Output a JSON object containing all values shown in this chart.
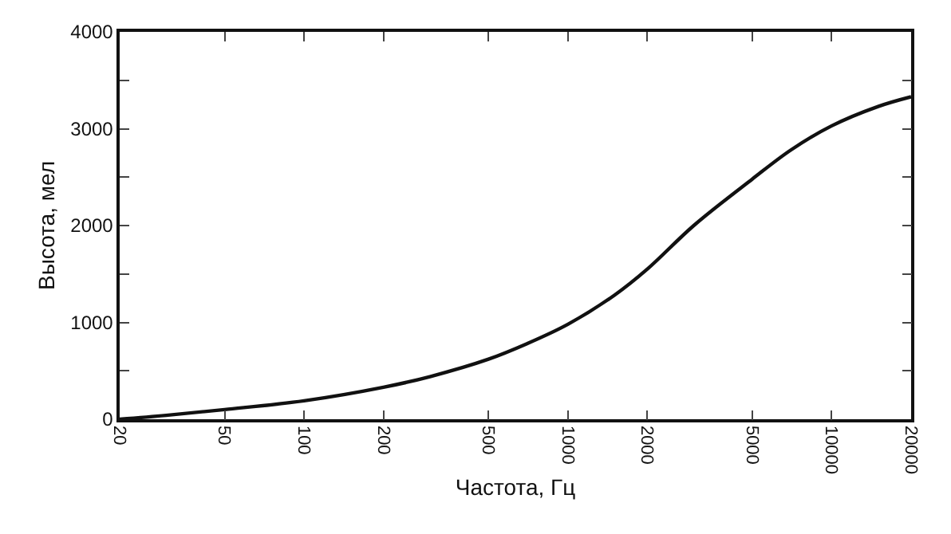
{
  "chart_data": {
    "type": "line",
    "xlabel": "Частота, Гц",
    "ylabel": "Высота, мел",
    "log": "x",
    "x": [
      20,
      30,
      50,
      100,
      200,
      300,
      500,
      700,
      1000,
      1500,
      2000,
      3000,
      5000,
      7000,
      10000,
      15000,
      20000
    ],
    "series": [
      {
        "color": "#111111",
        "values": [
          0,
          40,
          100,
          190,
          330,
          440,
          620,
          780,
          980,
          1280,
          1550,
          2000,
          2480,
          2780,
          3030,
          3230,
          3330
        ]
      }
    ],
    "xlim": [
      20,
      20000
    ],
    "xticks": [
      20,
      50,
      100,
      200,
      500,
      1000,
      2000,
      5000,
      10000,
      20000
    ],
    "ylim": [
      0,
      4000
    ],
    "yticks": [
      0,
      {
        "value": 500,
        "label": null
      },
      1000,
      {
        "value": 1500,
        "label": null
      },
      2000,
      {
        "value": 2500,
        "label": null
      },
      3000,
      {
        "value": 3500,
        "label": null
      },
      4000
    ],
    "marker": "none",
    "line_style": "solid"
  }
}
